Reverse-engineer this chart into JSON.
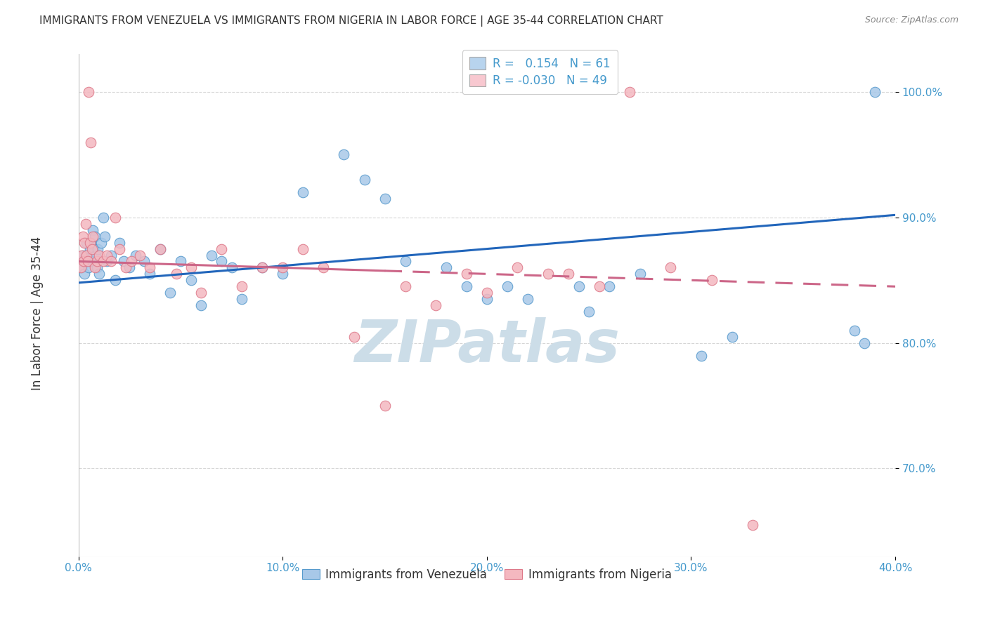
{
  "title": "IMMIGRANTS FROM VENEZUELA VS IMMIGRANTS FROM NIGERIA IN LABOR FORCE | AGE 35-44 CORRELATION CHART",
  "source": "Source: ZipAtlas.com",
  "xlabel_ticks": [
    "0.0%",
    "10.0%",
    "20.0%",
    "30.0%",
    "40.0%"
  ],
  "xlabel_vals": [
    0.0,
    10.0,
    20.0,
    30.0,
    40.0
  ],
  "ylabel_ticks": [
    "70.0%",
    "80.0%",
    "90.0%",
    "100.0%"
  ],
  "ylabel_vals": [
    70.0,
    80.0,
    90.0,
    100.0
  ],
  "xlim": [
    0.0,
    40.0
  ],
  "ylim": [
    63.0,
    103.0
  ],
  "venezuela_R": 0.154,
  "venezuela_N": 61,
  "nigeria_R": -0.03,
  "nigeria_N": 49,
  "blue_color": "#a8c8e8",
  "blue_edge_color": "#5599cc",
  "pink_color": "#f4b8c0",
  "pink_edge_color": "#dd7788",
  "trend_blue": "#2266bb",
  "trend_pink": "#cc6688",
  "watermark": "ZIPatlas",
  "watermark_color": "#ccdde8",
  "grid_color": "#cccccc",
  "title_color": "#333333",
  "tick_color": "#4499cc",
  "venezuela_x": [
    0.1,
    0.15,
    0.2,
    0.25,
    0.3,
    0.35,
    0.4,
    0.45,
    0.5,
    0.55,
    0.6,
    0.65,
    0.7,
    0.75,
    0.8,
    0.85,
    0.9,
    0.95,
    1.0,
    1.1,
    1.2,
    1.3,
    1.4,
    1.6,
    1.8,
    2.0,
    2.2,
    2.5,
    2.8,
    3.2,
    3.5,
    4.0,
    4.5,
    5.0,
    5.5,
    6.0,
    6.5,
    7.0,
    7.5,
    8.0,
    9.0,
    10.0,
    11.0,
    13.0,
    14.0,
    15.0,
    16.0,
    18.0,
    19.0,
    20.0,
    21.0,
    22.0,
    24.5,
    25.0,
    26.0,
    27.5,
    30.5,
    32.0,
    38.0,
    38.5,
    39.0
  ],
  "venezuela_y": [
    86.5,
    86.0,
    87.0,
    86.5,
    85.5,
    87.0,
    88.0,
    86.5,
    86.0,
    87.5,
    88.0,
    86.5,
    89.0,
    87.5,
    88.5,
    87.0,
    86.0,
    87.5,
    85.5,
    88.0,
    90.0,
    88.5,
    86.5,
    87.0,
    85.0,
    88.0,
    86.5,
    86.0,
    87.0,
    86.5,
    85.5,
    87.5,
    84.0,
    86.5,
    85.0,
    83.0,
    87.0,
    86.5,
    86.0,
    83.5,
    86.0,
    85.5,
    92.0,
    95.0,
    93.0,
    91.5,
    86.5,
    86.0,
    84.5,
    83.5,
    84.5,
    83.5,
    84.5,
    82.5,
    84.5,
    85.5,
    79.0,
    80.5,
    81.0,
    80.0,
    100.0
  ],
  "nigeria_x": [
    0.1,
    0.15,
    0.2,
    0.25,
    0.3,
    0.35,
    0.4,
    0.45,
    0.5,
    0.55,
    0.6,
    0.65,
    0.7,
    0.8,
    0.9,
    1.0,
    1.2,
    1.4,
    1.6,
    1.8,
    2.0,
    2.3,
    2.6,
    3.0,
    3.5,
    4.0,
    4.8,
    5.5,
    6.0,
    7.0,
    8.0,
    9.0,
    10.0,
    11.0,
    12.0,
    13.5,
    15.0,
    16.0,
    17.5,
    19.0,
    20.0,
    21.5,
    23.0,
    24.0,
    25.5,
    27.0,
    29.0,
    31.0,
    33.0
  ],
  "nigeria_y": [
    86.0,
    87.0,
    88.5,
    86.5,
    88.0,
    89.5,
    87.0,
    86.5,
    100.0,
    88.0,
    96.0,
    87.5,
    88.5,
    86.0,
    86.5,
    87.0,
    86.5,
    87.0,
    86.5,
    90.0,
    87.5,
    86.0,
    86.5,
    87.0,
    86.0,
    87.5,
    85.5,
    86.0,
    84.0,
    87.5,
    84.5,
    86.0,
    86.0,
    87.5,
    86.0,
    80.5,
    75.0,
    84.5,
    83.0,
    85.5,
    84.0,
    86.0,
    85.5,
    85.5,
    84.5,
    100.0,
    86.0,
    85.0,
    65.5
  ],
  "trend_v_x0": 0.0,
  "trend_v_y0": 84.8,
  "trend_v_x1": 40.0,
  "trend_v_y1": 90.2,
  "trend_n_x0": 0.0,
  "trend_n_y0": 86.5,
  "trend_n_x1": 40.0,
  "trend_n_y1": 84.5
}
